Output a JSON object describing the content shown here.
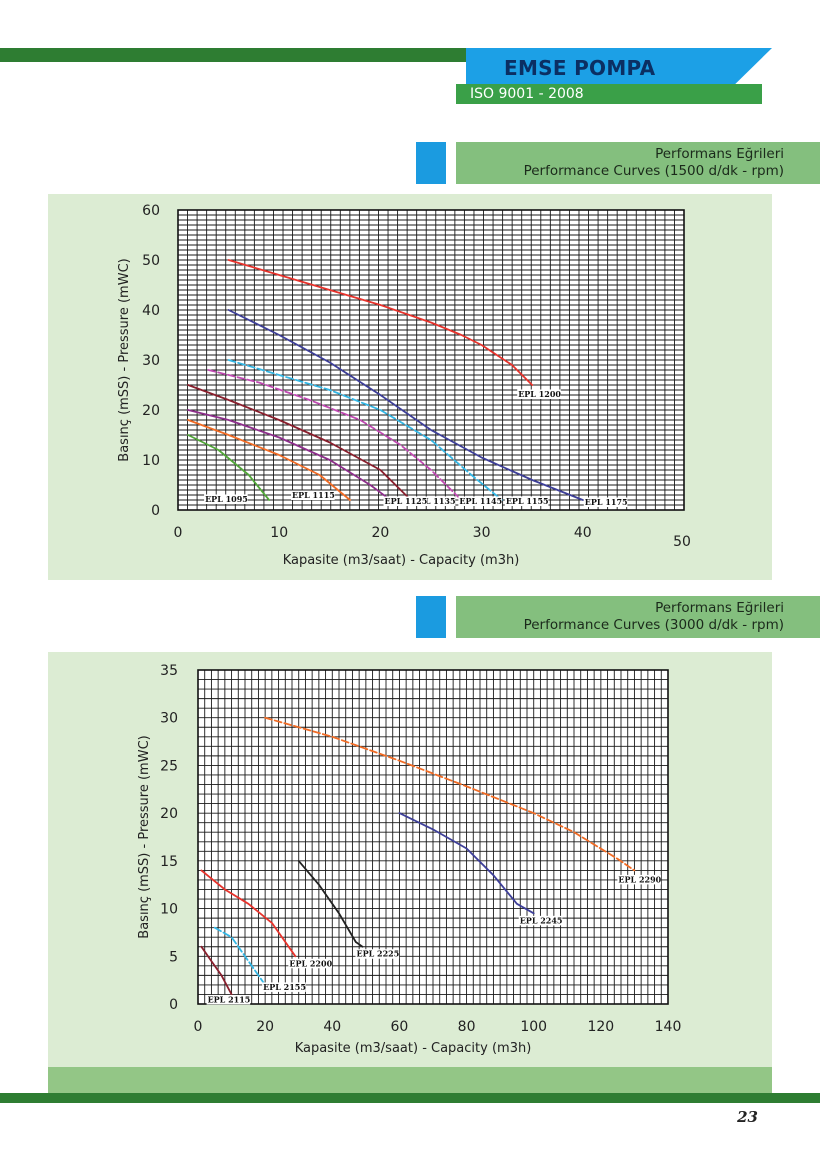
{
  "header": {
    "brand": "EMSE POMPA",
    "iso": "ISO 9001 - 2008"
  },
  "sections": [
    {
      "title_tr": "Performans Eğrileri",
      "title_en": "Performance Curves (1500 d/dk - rpm)"
    },
    {
      "title_tr": "Performans Eğrileri",
      "title_en": "Performance Curves (3000 d/dk - rpm)"
    }
  ],
  "page_number": "23",
  "colors": {
    "dark_green": "#2e7d32",
    "brand_blue": "#1ca0e6",
    "header_green": "#84bf7e",
    "panel_bg": "#dcecd3"
  },
  "chart_data": [
    {
      "type": "line",
      "xlabel": "Kapasite (m3/saat) - Capacity (m3h)",
      "ylabel": "Basınç (mSS) - Pressure (mWC)",
      "xlim": [
        0,
        50
      ],
      "ylim": [
        0,
        60
      ],
      "xticks": [
        "0",
        "10",
        "20",
        "30",
        "40",
        "50"
      ],
      "yticks": [
        "0",
        "10",
        "20",
        "30",
        "40",
        "50",
        "60"
      ],
      "grid": true,
      "series": [
        {
          "name": "EPL 1200",
          "color": "#e8332c",
          "dashed": false,
          "x": [
            5,
            10,
            15,
            20,
            25,
            28,
            30,
            33,
            35
          ],
          "y": [
            50,
            47,
            44,
            41,
            37.5,
            35,
            33,
            29,
            25
          ]
        },
        {
          "name": "EPL 1175",
          "color": "#3e3f99",
          "dashed": false,
          "x": [
            5,
            10,
            15,
            20,
            25,
            30,
            35,
            40
          ],
          "y": [
            40,
            35,
            29.5,
            23,
            16,
            10.5,
            6,
            2
          ]
        },
        {
          "name": "EPL 1155",
          "color": "#35b8e6",
          "dashed": true,
          "x": [
            5,
            10,
            15,
            20,
            25,
            29,
            32
          ],
          "y": [
            30,
            27,
            24,
            20,
            14,
            7,
            2
          ]
        },
        {
          "name": "EPL 1145",
          "color": "#c24bb4",
          "dashed": true,
          "x": [
            3,
            8,
            13,
            18,
            22,
            25,
            28
          ],
          "y": [
            28,
            25.5,
            22,
            18,
            13,
            8,
            2
          ]
        },
        {
          "name": "EPL 1135",
          "color": "#8a1f2d",
          "dashed": false,
          "x": [
            1,
            5,
            10,
            15,
            20,
            23
          ],
          "y": [
            25,
            22,
            18,
            13.5,
            8,
            2
          ]
        },
        {
          "name": "EPL 1125",
          "color": "#8e2f8c",
          "dashed": false,
          "x": [
            1,
            5,
            10,
            15,
            19,
            21
          ],
          "y": [
            20,
            18,
            14.5,
            10,
            5,
            2
          ]
        },
        {
          "name": "EPL 1115",
          "color": "#f26c25",
          "dashed": false,
          "x": [
            1,
            5,
            10,
            14,
            17
          ],
          "y": [
            18,
            15,
            11,
            7,
            2
          ]
        },
        {
          "name": "EPL 1095",
          "color": "#52a839",
          "dashed": false,
          "x": [
            1,
            4,
            7,
            9
          ],
          "y": [
            15,
            12,
            7,
            2
          ]
        }
      ]
    },
    {
      "type": "line",
      "xlabel": "Kapasite (m3/saat) - Capacity (m3h)",
      "ylabel": "Basınç (mSS) - Pressure (mWC)",
      "xlim": [
        0,
        140
      ],
      "ylim": [
        0,
        35
      ],
      "xticks": [
        "0",
        "20",
        "40",
        "60",
        "80",
        "100",
        "120",
        "140"
      ],
      "yticks": [
        "0",
        "5",
        "10",
        "15",
        "20",
        "25",
        "30",
        "35"
      ],
      "grid": true,
      "series": [
        {
          "name": "EPL 2290",
          "color": "#f26c25",
          "dashed": true,
          "x": [
            20,
            40,
            60,
            80,
            100,
            112,
            125,
            130
          ],
          "y": [
            30,
            28,
            25.5,
            22.8,
            20,
            18,
            15.2,
            14
          ]
        },
        {
          "name": "EPL 2245",
          "color": "#3e3f99",
          "dashed": false,
          "x": [
            60,
            70,
            80,
            88,
            95,
            100
          ],
          "y": [
            20,
            18.3,
            16.3,
            13.5,
            10.5,
            9.5
          ]
        },
        {
          "name": "EPL 2225",
          "color": "#222222",
          "dashed": false,
          "x": [
            30,
            36,
            42,
            47,
            49
          ],
          "y": [
            15,
            12.5,
            9.5,
            6.5,
            6
          ]
        },
        {
          "name": "EPL 2200",
          "color": "#e8332c",
          "dashed": false,
          "x": [
            1,
            8,
            15,
            22,
            29
          ],
          "y": [
            14,
            12,
            10.5,
            8.5,
            5
          ]
        },
        {
          "name": "EPL 2155",
          "color": "#35b8e6",
          "dashed": true,
          "x": [
            5,
            10,
            15,
            20
          ],
          "y": [
            8,
            7,
            4.5,
            2
          ]
        },
        {
          "name": "EPL 2115",
          "color": "#8a1f2d",
          "dashed": false,
          "x": [
            1,
            4,
            7,
            10
          ],
          "y": [
            6,
            4.5,
            3,
            1
          ]
        }
      ]
    }
  ]
}
